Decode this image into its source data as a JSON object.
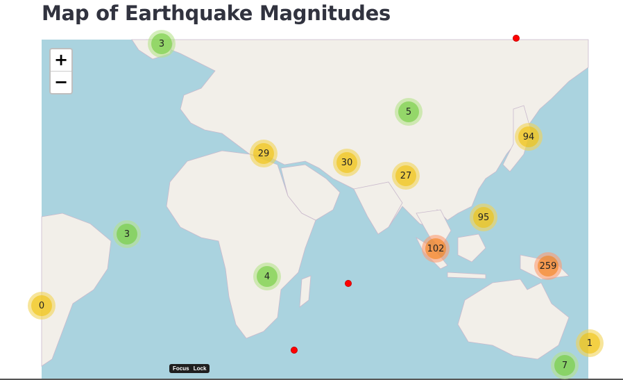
{
  "page": {
    "title": "Map of Earthquake Magnitudes"
  },
  "map": {
    "zoom_in_label": "+",
    "zoom_out_label": "−",
    "focus_lock_label": "Focus Lock",
    "colors": {
      "water": "#aad3df",
      "land": "#f2efe9",
      "cluster_small": "#6ecc39",
      "cluster_medium": "#f0c20c",
      "cluster_large": "#f18017",
      "single_point": "#ff0000"
    },
    "clusters": [
      {
        "label": "3",
        "size": "small"
      },
      {
        "label": "5",
        "size": "small"
      },
      {
        "label": "94",
        "size": "medium"
      },
      {
        "label": "29",
        "size": "medium"
      },
      {
        "label": "30",
        "size": "medium"
      },
      {
        "label": "27",
        "size": "medium"
      },
      {
        "label": "95",
        "size": "medium"
      },
      {
        "label": "3",
        "size": "small"
      },
      {
        "label": "102",
        "size": "large"
      },
      {
        "label": "259",
        "size": "large"
      },
      {
        "label": "4",
        "size": "small"
      },
      {
        "label": "0",
        "size": "medium"
      },
      {
        "label": "1",
        "size": "medium"
      },
      {
        "label": "7",
        "size": "small"
      }
    ],
    "single_points_count": 3
  }
}
